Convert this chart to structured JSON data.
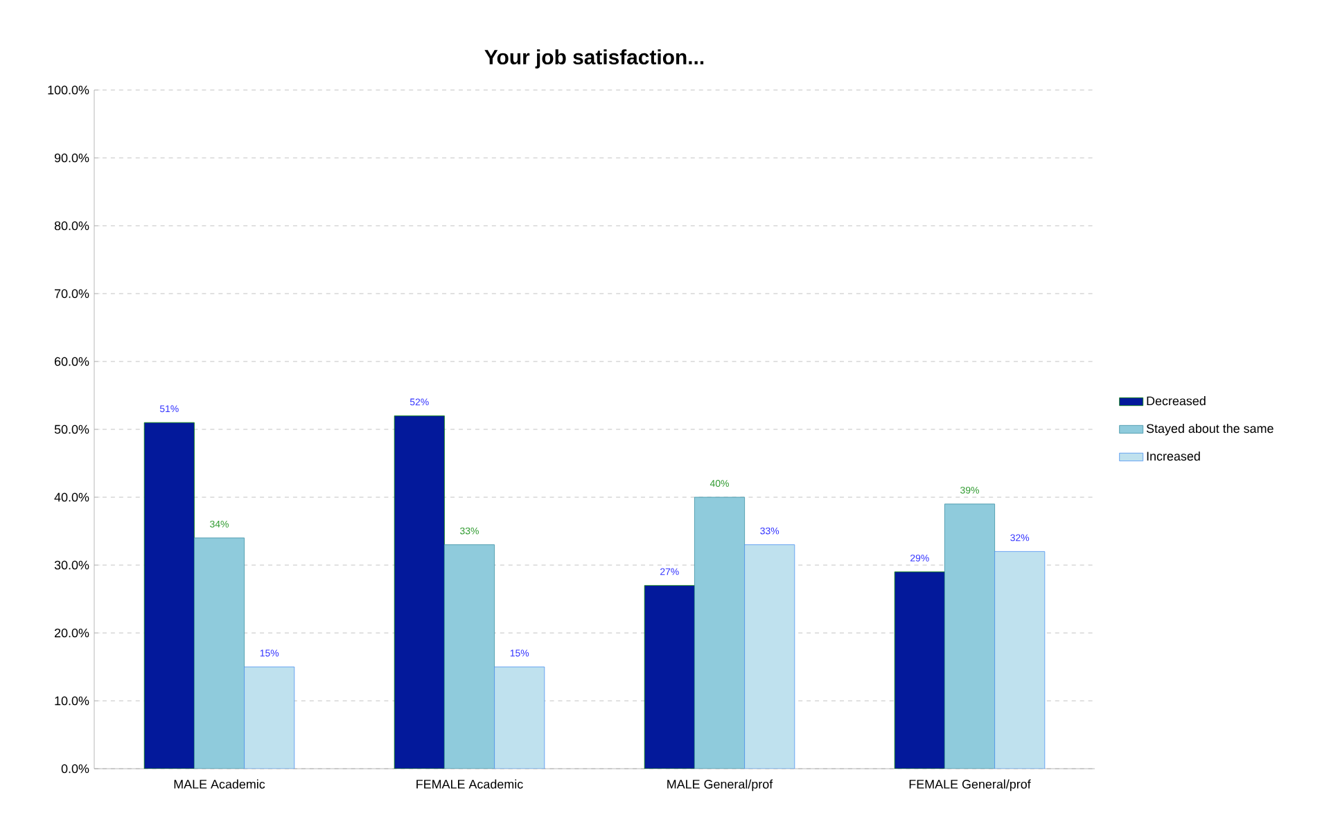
{
  "chart_data": {
    "type": "bar",
    "title": "Your job satisfaction...",
    "categories": [
      "MALE Academic",
      "FEMALE Academic",
      "MALE General/prof",
      "FEMALE General/prof"
    ],
    "series": [
      {
        "name": "Decreased",
        "color": "#03199b",
        "values": [
          51,
          52,
          27,
          29
        ],
        "value_labels": [
          "51%",
          "52%",
          "27%",
          "29%"
        ]
      },
      {
        "name": "Stayed about the same",
        "color": "#8fcbdc",
        "values": [
          34,
          33,
          40,
          39
        ],
        "value_labels": [
          "34%",
          "33%",
          "40%",
          "39%"
        ]
      },
      {
        "name": "Increased",
        "color": "#bfe1ee",
        "values": [
          15,
          15,
          33,
          32
        ],
        "value_labels": [
          "15%",
          "15%",
          "33%",
          "32%"
        ]
      }
    ],
    "ylim": [
      0,
      100
    ],
    "yticks": [
      {
        "value": 0,
        "label": "0.0%"
      },
      {
        "value": 10,
        "label": "10.0%"
      },
      {
        "value": 20,
        "label": "20.0%"
      },
      {
        "value": 30,
        "label": "30.0%"
      },
      {
        "value": 40,
        "label": "40.0%"
      },
      {
        "value": 50,
        "label": "50.0%"
      },
      {
        "value": 60,
        "label": "60.0%"
      },
      {
        "value": 70,
        "label": "70.0%"
      },
      {
        "value": 80,
        "label": "80.0%"
      },
      {
        "value": 90,
        "label": "90.0%"
      },
      {
        "value": 100,
        "label": "100.0%"
      }
    ],
    "grid": "y",
    "legend": "right"
  }
}
